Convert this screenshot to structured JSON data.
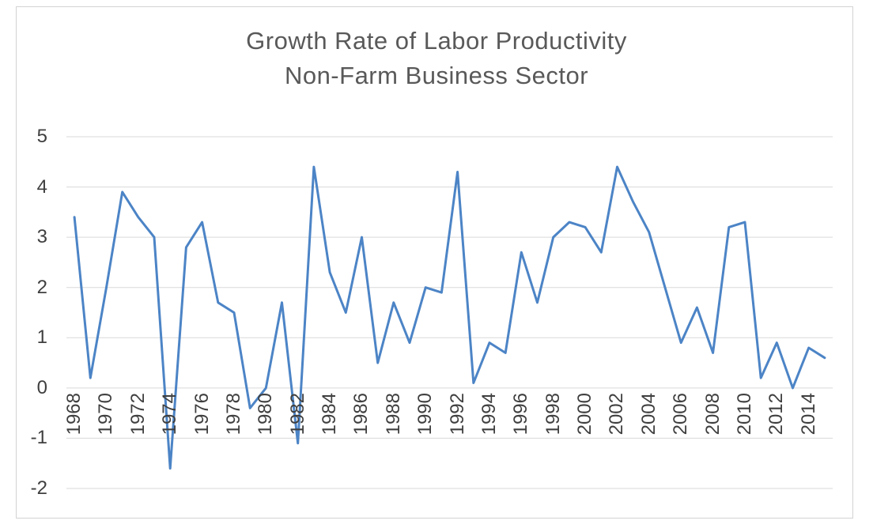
{
  "chart_data": {
    "type": "line",
    "title": "Growth Rate of Labor Productivity Non-Farm Business Sector",
    "title_line1": "Growth Rate of Labor Productivity",
    "title_line2": "Non-Farm Business Sector",
    "xlabel": "",
    "ylabel": "",
    "x": [
      1968,
      1969,
      1970,
      1971,
      1972,
      1973,
      1974,
      1975,
      1976,
      1977,
      1978,
      1979,
      1980,
      1981,
      1982,
      1983,
      1984,
      1985,
      1986,
      1987,
      1988,
      1989,
      1990,
      1991,
      1992,
      1993,
      1994,
      1995,
      1996,
      1997,
      1998,
      1999,
      2000,
      2001,
      2002,
      2003,
      2004,
      2005,
      2006,
      2007,
      2008,
      2009,
      2010,
      2011,
      2012,
      2013,
      2014,
      2015
    ],
    "values": [
      3.4,
      0.2,
      2.0,
      3.9,
      3.4,
      3.0,
      -1.6,
      2.8,
      3.3,
      1.7,
      1.5,
      -0.4,
      0.0,
      1.7,
      -1.1,
      4.4,
      2.3,
      1.5,
      3.0,
      0.5,
      1.7,
      0.9,
      2.0,
      1.9,
      4.3,
      0.1,
      0.9,
      0.7,
      2.7,
      1.7,
      3.0,
      3.3,
      3.2,
      2.7,
      4.4,
      3.7,
      3.1,
      2.0,
      0.9,
      1.6,
      0.7,
      3.2,
      3.3,
      0.2,
      0.9,
      0.0,
      0.8,
      0.6
    ],
    "ylim": [
      -2,
      5
    ],
    "y_ticks": [
      5,
      4,
      3,
      2,
      1,
      0,
      -1,
      -2
    ],
    "x_tick_labels": [
      "1968",
      "1970",
      "1972",
      "1974",
      "1976",
      "1978",
      "1980",
      "1982",
      "1984",
      "1986",
      "1988",
      "1990",
      "1992",
      "1994",
      "1996",
      "1998",
      "2000",
      "2002",
      "2004",
      "2006",
      "2008",
      "2010",
      "2012",
      "2014"
    ],
    "grid": true,
    "legend": false,
    "line_color": "#4C84C6",
    "gridline_color": "#D9D9D9",
    "title_color": "#595959",
    "tick_color": "#3F3F3F"
  }
}
